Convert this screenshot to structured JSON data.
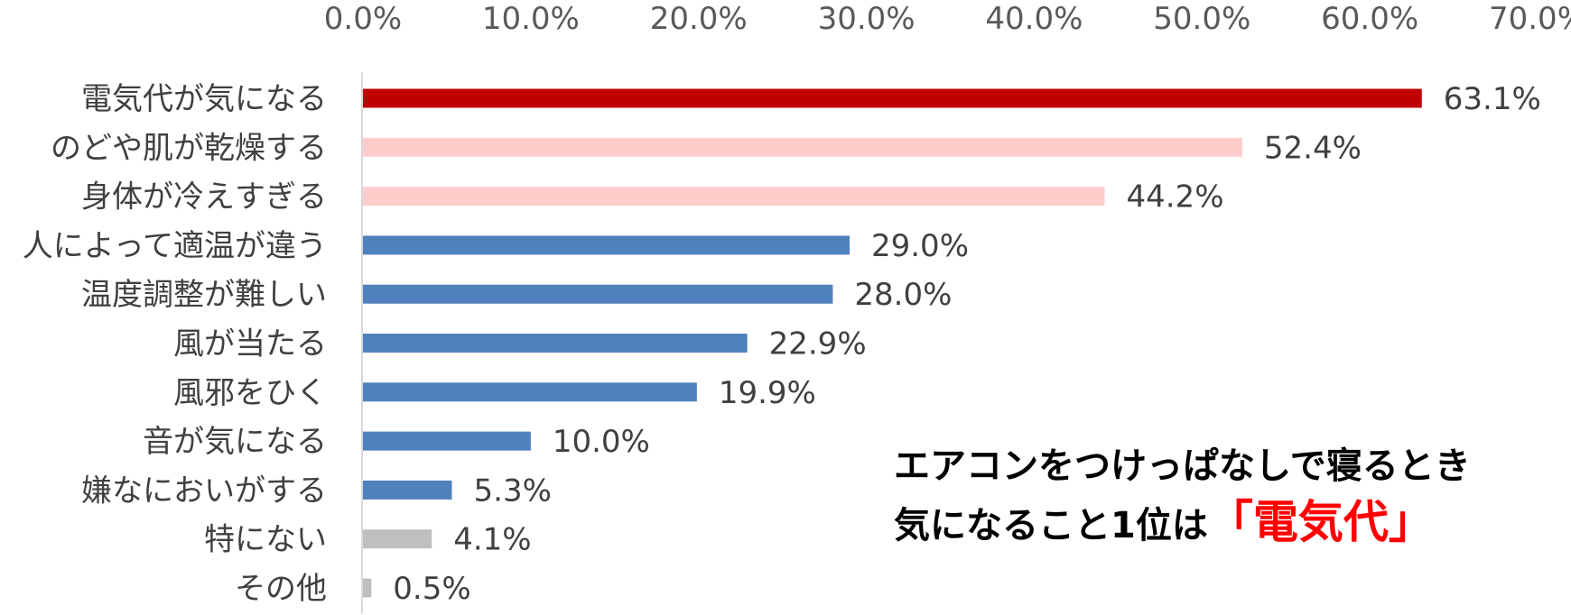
{
  "chart_data": {
    "type": "bar",
    "orientation": "horizontal",
    "categories": [
      "電気代が気になる",
      "のどや肌が乾燥する",
      "身体が冷えすぎる",
      "人によって適温が違う",
      "温度調整が難しい",
      "風が当たる",
      "風邪をひく",
      "音が気になる",
      "嫌なにおいがする",
      "特にない",
      "その他"
    ],
    "values": [
      63.1,
      52.4,
      44.2,
      29.0,
      28.0,
      22.9,
      19.9,
      10.0,
      5.3,
      4.1,
      0.5
    ],
    "value_labels": [
      "63.1%",
      "52.4%",
      "44.2%",
      "29.0%",
      "28.0%",
      "22.9%",
      "19.9%",
      "10.0%",
      "5.3%",
      "4.1%",
      "0.5%"
    ],
    "bar_colors": [
      "#c00000",
      "#ffcccc",
      "#ffcccc",
      "#4f81bd",
      "#4f81bd",
      "#4f81bd",
      "#4f81bd",
      "#4f81bd",
      "#4f81bd",
      "#bfbfbf",
      "#bfbfbf"
    ],
    "xlim": [
      0,
      70
    ],
    "x_ticks": [
      "0.0%",
      "10.0%",
      "20.0%",
      "30.0%",
      "40.0%",
      "50.0%",
      "60.0%",
      "70.0%"
    ],
    "x_axis_position": "top",
    "grid": false,
    "title": "",
    "xlabel": "",
    "ylabel": ""
  },
  "callout": {
    "line1": "エアコンをつけっぱなしで寝るとき",
    "line2_prefix": "気になること1位は",
    "line2_highlight": "「電気代」",
    "highlight_color": "#ff0000"
  }
}
